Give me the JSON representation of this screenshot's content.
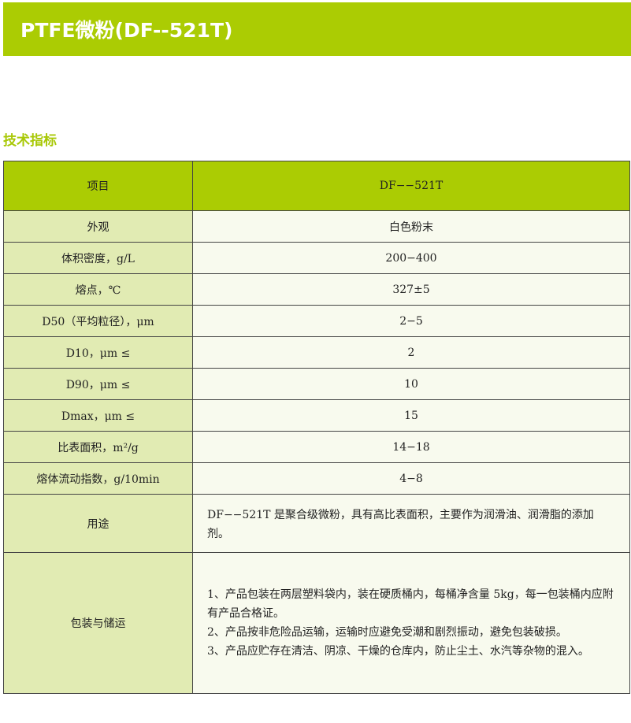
{
  "title": "PTFE微粉(DF--521T)",
  "section": "技术指标",
  "table": {
    "header": [
      "项目",
      "DF−−521T"
    ],
    "rows": [
      [
        "外观",
        "白色粉末"
      ],
      [
        "体积密度，g/L",
        "200−400"
      ],
      [
        "熔点，℃",
        "327±5"
      ],
      [
        "D50（平均粒径），μm",
        "2−5"
      ],
      [
        "D10，μm ≤",
        "2"
      ],
      [
        "D90，μm ≤",
        "10"
      ],
      [
        "Dmax，μm ≤",
        "15"
      ],
      [
        "比表面积，m²/g",
        "14−18"
      ],
      [
        "熔体流动指数，g/10min",
        "4−8"
      ]
    ],
    "usage": {
      "label": "用途",
      "text": "DF−−521T 是聚合级微粉，具有高比表面积，主要作为润滑油、润滑脂的添加剂。"
    },
    "packing": {
      "label": "包装与储运",
      "lines": [
        "1、产品包装在两层塑料袋内，装在硬质桶内，每桶净含量 5kg，每一包装桶内应附有产品合格证。",
        "2、产品按非危险品运输，运输时应避免受潮和剧烈振动，避免包装破损。",
        "3、产品应贮存在清洁、阴凉、干燥的仓库内，防止尘土、水汽等杂物的混入。"
      ]
    }
  },
  "colors": {
    "accent": "#abcc03",
    "label_cell": "#e1ebb3",
    "value_cell": "#f8faee"
  }
}
